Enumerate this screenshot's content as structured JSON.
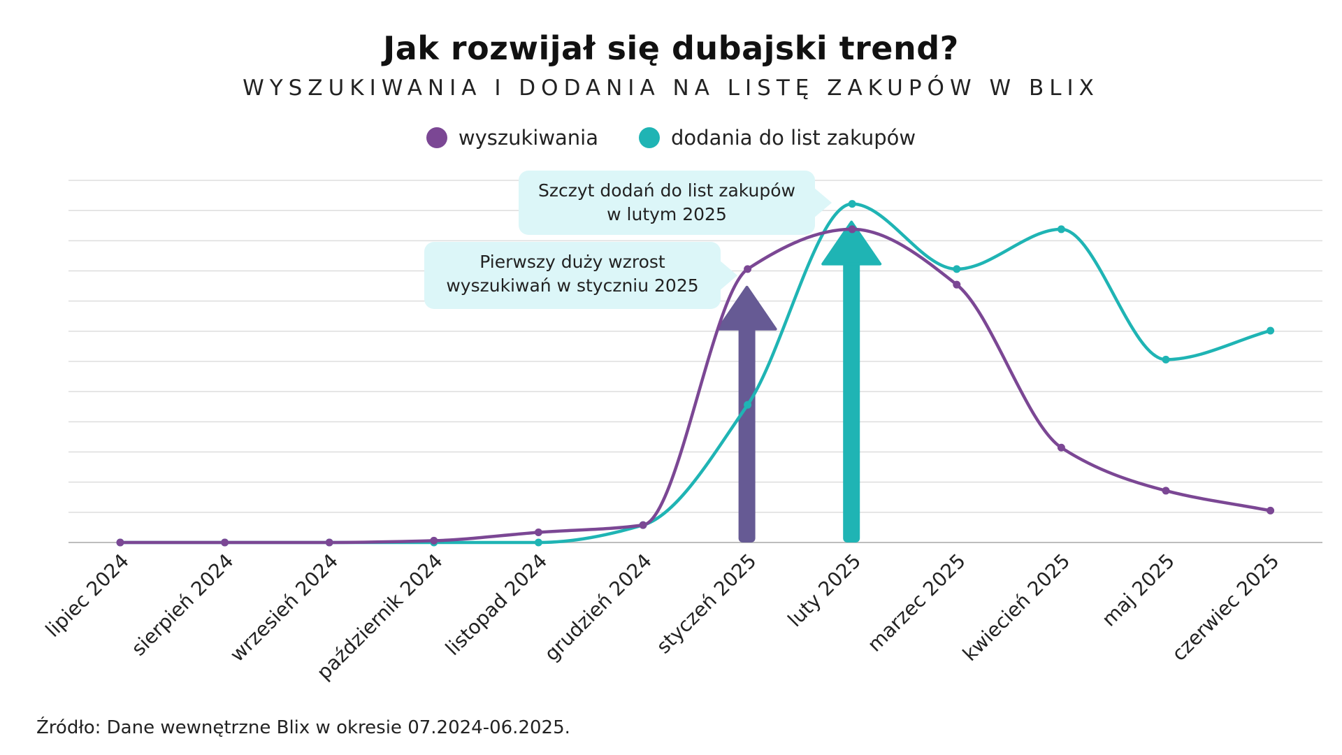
{
  "title": "Jak rozwijał się dubajski trend?",
  "subtitle": "WYSZUKIWANIA I DODANIA NA LISTĘ ZAKUPÓW W BLIX",
  "legend": [
    {
      "label": "wyszukiwania",
      "color": "#7b4794"
    },
    {
      "label": "dodania do list zakupów",
      "color": "#1fb4b4"
    }
  ],
  "annotations": {
    "feb_line1": "Szczyt dodań do list zakupów",
    "feb_line2": "w lutym 2025",
    "jan_line1": "Pierwszy duży wzrost",
    "jan_line2": "wyszukiwań w styczniu 2025"
  },
  "source": "Źródło: Dane wewnętrzne Blix w okresie 07.2024-06.2025.",
  "chart_data": {
    "type": "line",
    "categories": [
      "lipiec 2024",
      "sierpień 2024",
      "wrzesień 2024",
      "październik 2024",
      "listopad 2024",
      "grudzień 2024",
      "styczeń 2025",
      "luty 2025",
      "marzec 2025",
      "kwiecień 2025",
      "maj 2025",
      "czerwiec 2025"
    ],
    "series": [
      {
        "name": "wyszukiwania",
        "color": "#7b4794",
        "values": [
          0,
          0,
          0,
          0.5,
          2.8,
          4.8,
          75.5,
          86.5,
          71.2,
          26.2,
          14.3,
          8.8
        ]
      },
      {
        "name": "dodania do list zakupów",
        "color": "#1fb4b4",
        "values": [
          0,
          0,
          0,
          0,
          0,
          4.8,
          38,
          93.5,
          75.5,
          86.5,
          50.5,
          58.5
        ]
      }
    ],
    "ylim": [
      0,
      100
    ],
    "grid": true,
    "y_tick_labels_shown": false,
    "arrows": [
      {
        "category": "styczeń 2025",
        "color": "#665a94"
      },
      {
        "category": "luty 2025",
        "color": "#1fb4b4"
      }
    ]
  }
}
